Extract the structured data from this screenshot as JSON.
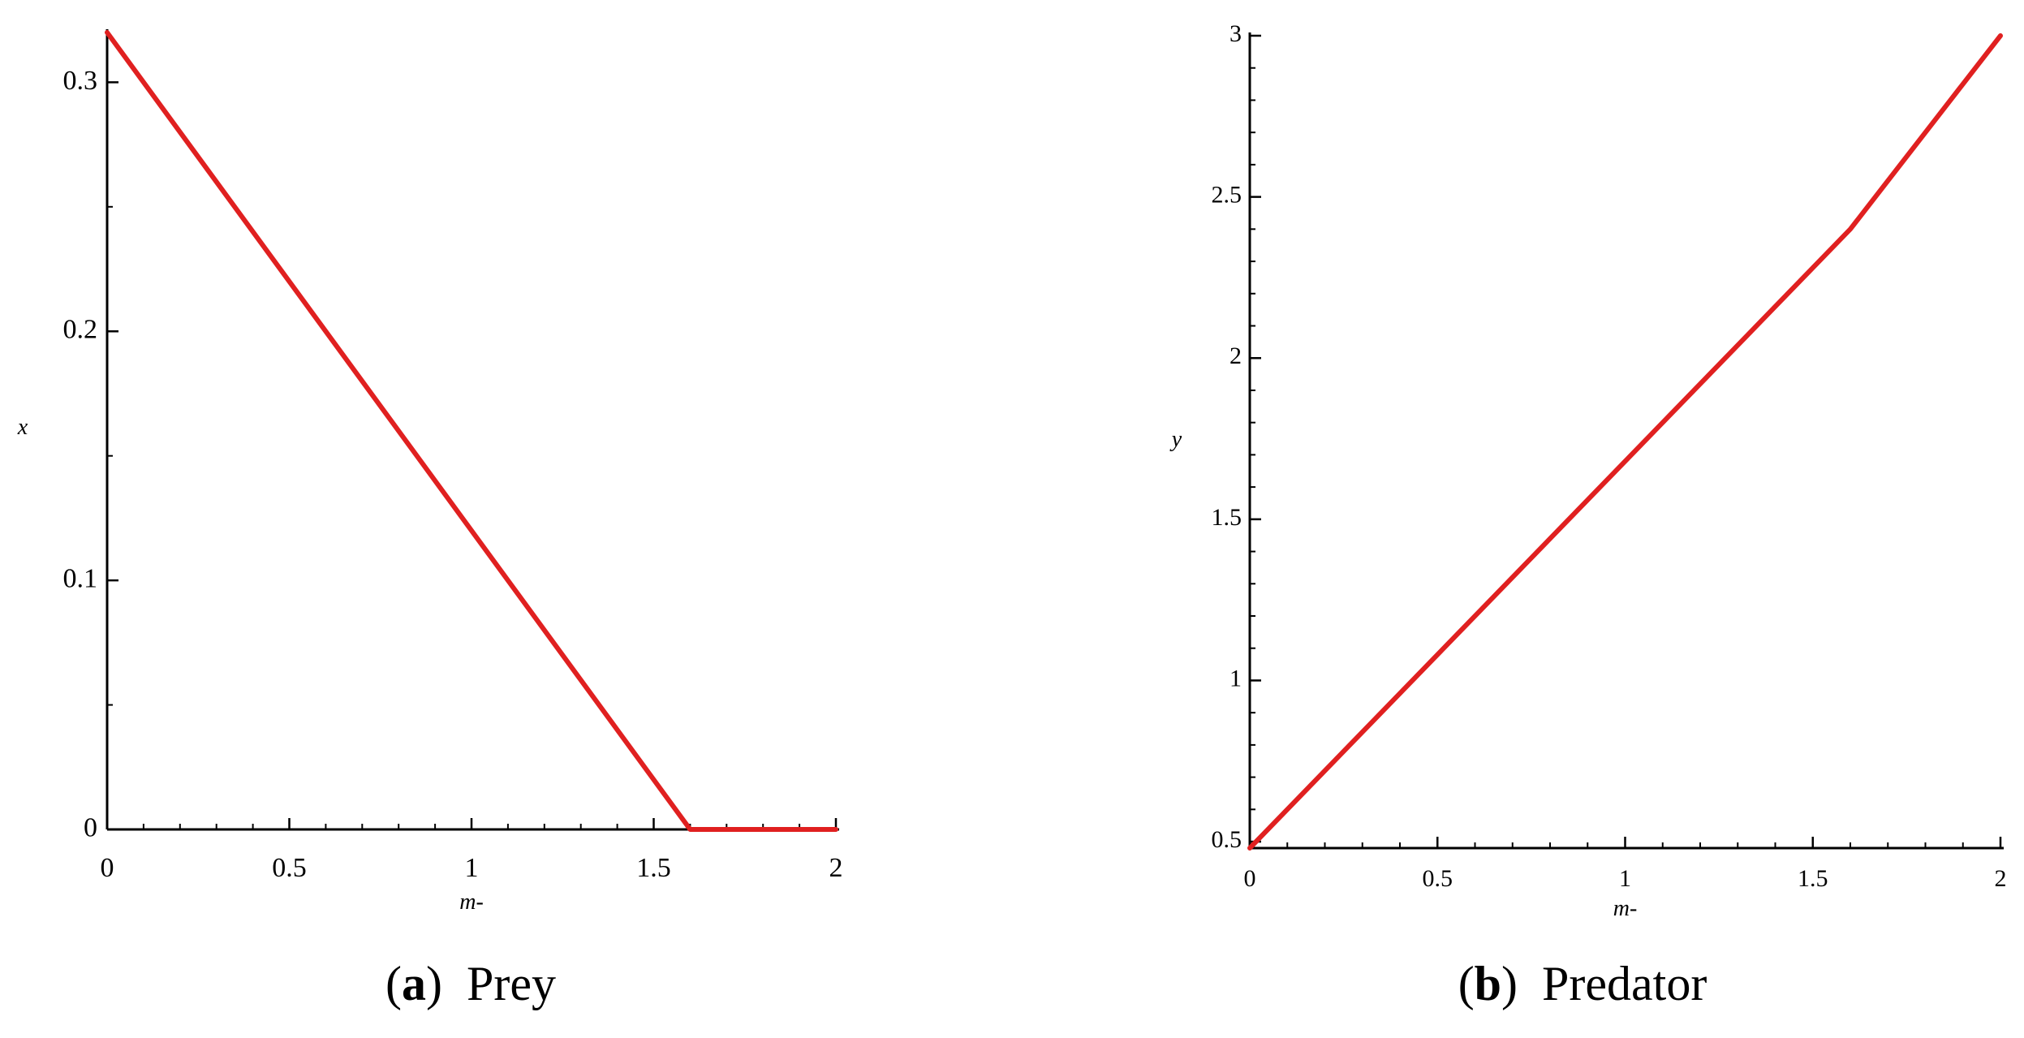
{
  "chart_data": [
    {
      "type": "line",
      "caption_letter": "a",
      "caption_text": "Prey",
      "xlabel": "m-",
      "ylabel": "x",
      "xlim": [
        0,
        2
      ],
      "ylim": [
        0,
        0.32
      ],
      "x_ticks": [
        0,
        0.5,
        1,
        1.5,
        2
      ],
      "x_tick_labels": [
        "0",
        "0.5",
        "1",
        "1.5",
        "2"
      ],
      "y_ticks": [
        0,
        0.1,
        0.2,
        0.3
      ],
      "y_tick_labels": [
        "0",
        "0.1",
        "0.2",
        "0.3"
      ],
      "y_minor_step": 0.05,
      "grid": false,
      "line_color": "#e02020",
      "series": [
        {
          "x": [
            0,
            1.6,
            2
          ],
          "y": [
            0.32,
            0,
            0
          ]
        }
      ]
    },
    {
      "type": "line",
      "caption_letter": "b",
      "caption_text": "Predator",
      "xlabel": "m-",
      "ylabel": "y",
      "xlim": [
        0,
        2
      ],
      "ylim": [
        0.48,
        3
      ],
      "x_ticks": [
        0,
        0.5,
        1,
        1.5,
        2
      ],
      "x_tick_labels": [
        "0",
        "0.5",
        "1",
        "1.5",
        "2"
      ],
      "y_ticks": [
        0.5,
        1,
        1.5,
        2,
        2.5,
        3
      ],
      "y_tick_labels": [
        "0.5",
        "1",
        "1.5",
        "2",
        "2.5",
        "3"
      ],
      "y_minor_step": 0.1,
      "grid": false,
      "line_color": "#e02020",
      "series": [
        {
          "x": [
            0,
            1.6,
            2
          ],
          "y": [
            0.48,
            2.4,
            3
          ]
        }
      ]
    }
  ]
}
